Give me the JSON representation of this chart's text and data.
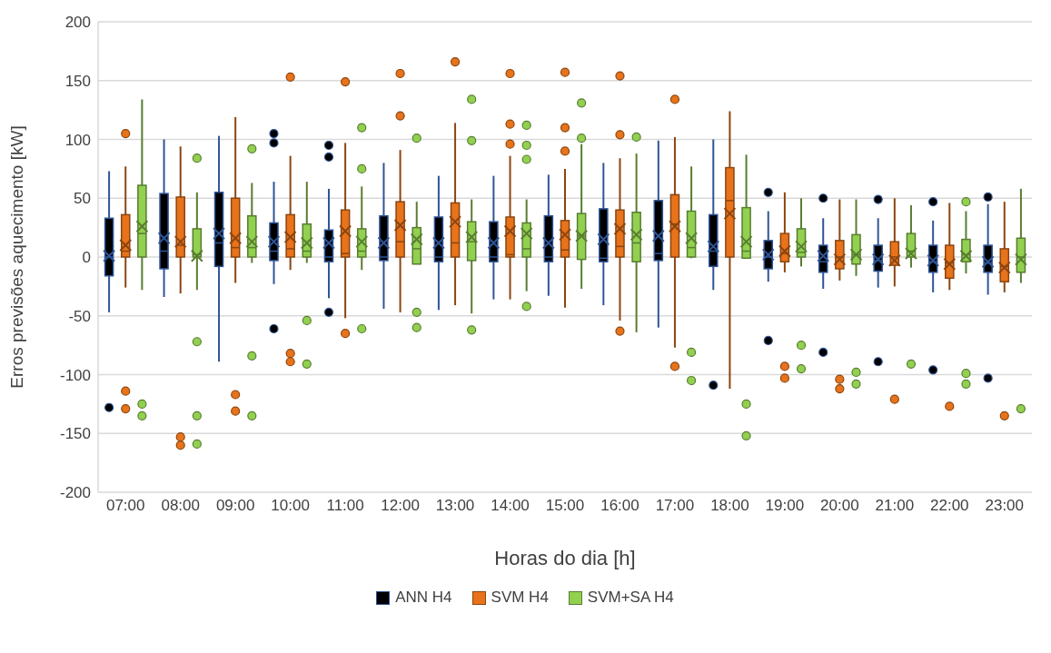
{
  "chart_data": {
    "type": "box",
    "xlabel": "Horas do dia [h]",
    "ylabel": "Erros previsões aquecimento [kW]",
    "categories": [
      "07:00",
      "08:00",
      "09:00",
      "10:00",
      "11:00",
      "12:00",
      "13:00",
      "14:00",
      "15:00",
      "16:00",
      "17:00",
      "18:00",
      "19:00",
      "20:00",
      "21:00",
      "22:00",
      "23:00"
    ],
    "ylim": [
      -200,
      200
    ],
    "yticks": [
      -200,
      -150,
      -100,
      -50,
      0,
      50,
      100,
      150,
      200
    ],
    "grid": "y",
    "legend": "bottom",
    "marker": "circle",
    "series": [
      {
        "name": "ANN H4",
        "color": "#000000",
        "boxes": [
          {
            "low": -47,
            "q1": -16,
            "median": 0,
            "q3": 33,
            "high": 73,
            "mean": 1,
            "outliers": [
              -128
            ]
          },
          {
            "low": -34,
            "q1": -10,
            "median": 5,
            "q3": 54,
            "high": 100,
            "mean": 16
          },
          {
            "low": -89,
            "q1": -8,
            "median": 12,
            "q3": 55,
            "high": 103,
            "mean": 20
          },
          {
            "low": -23,
            "q1": -3,
            "median": 5,
            "q3": 29,
            "high": 64,
            "mean": 13,
            "outliers": [
              105,
              97,
              -61
            ]
          },
          {
            "low": -35,
            "q1": -4,
            "median": 0,
            "q3": 23,
            "high": 58,
            "mean": 12,
            "outliers": [
              95,
              85,
              -47
            ]
          },
          {
            "low": -44,
            "q1": -3,
            "median": 0,
            "q3": 35,
            "high": 80,
            "mean": 12
          },
          {
            "low": -45,
            "q1": -4,
            "median": 0,
            "q3": 34,
            "high": 69,
            "mean": 12
          },
          {
            "low": -36,
            "q1": -4,
            "median": 0,
            "q3": 30,
            "high": 69,
            "mean": 12
          },
          {
            "low": -33,
            "q1": -4,
            "median": 0,
            "q3": 35,
            "high": 70,
            "mean": 12
          },
          {
            "low": -41,
            "q1": -4,
            "median": -1,
            "q3": 41,
            "high": 80,
            "mean": 15
          },
          {
            "low": -60,
            "q1": -3,
            "median": 3,
            "q3": 48,
            "high": 99,
            "mean": 18
          },
          {
            "low": -28,
            "q1": -8,
            "median": 5,
            "q3": 36,
            "high": 100,
            "mean": 9,
            "outliers": [
              -109
            ]
          },
          {
            "low": -21,
            "q1": -10,
            "median": 0,
            "q3": 14,
            "high": 39,
            "mean": 2,
            "outliers": [
              55,
              -71
            ]
          },
          {
            "low": -27,
            "q1": -13,
            "median": -4,
            "q3": 10,
            "high": 33,
            "mean": 1,
            "outliers": [
              50,
              -81
            ]
          },
          {
            "low": -26,
            "q1": -12,
            "median": -3,
            "q3": 10,
            "high": 33,
            "mean": -2,
            "outliers": [
              49,
              -89
            ]
          },
          {
            "low": -30,
            "q1": -13,
            "median": -4,
            "q3": 10,
            "high": 31,
            "mean": -3,
            "outliers": [
              47,
              -96
            ]
          },
          {
            "low": -32,
            "q1": -13,
            "median": -5,
            "q3": 10,
            "high": 45,
            "mean": -4,
            "outliers": [
              51,
              -103
            ]
          }
        ]
      },
      {
        "name": "SVM H4",
        "color": "#e8731a",
        "boxes": [
          {
            "low": -26,
            "q1": 0,
            "median": 5,
            "q3": 36,
            "high": 77,
            "mean": 10,
            "outliers": [
              105,
              -114,
              -129
            ]
          },
          {
            "low": -31,
            "q1": 0,
            "median": 10,
            "q3": 51,
            "high": 94,
            "mean": 13,
            "outliers": [
              -153,
              -160
            ]
          },
          {
            "low": -22,
            "q1": 0,
            "median": 8,
            "q3": 50,
            "high": 119,
            "mean": 16,
            "outliers": [
              -117,
              -131
            ]
          },
          {
            "low": -11,
            "q1": 0,
            "median": 7,
            "q3": 36,
            "high": 86,
            "mean": 17,
            "outliers": [
              153,
              -82,
              -89
            ]
          },
          {
            "low": -52,
            "q1": 0,
            "median": 3,
            "q3": 40,
            "high": 97,
            "mean": 22,
            "outliers": [
              149,
              -65
            ]
          },
          {
            "low": -47,
            "q1": 0,
            "median": 13,
            "q3": 47,
            "high": 91,
            "mean": 27,
            "outliers": [
              156,
              120
            ]
          },
          {
            "low": -41,
            "q1": 0,
            "median": 12,
            "q3": 46,
            "high": 114,
            "mean": 30,
            "outliers": [
              166
            ]
          },
          {
            "low": -36,
            "q1": 0,
            "median": 2,
            "q3": 34,
            "high": 86,
            "mean": 22,
            "outliers": [
              156,
              113,
              96
            ]
          },
          {
            "low": -43,
            "q1": 0,
            "median": 6,
            "q3": 31,
            "high": 75,
            "mean": 19,
            "outliers": [
              157,
              110,
              90
            ]
          },
          {
            "low": -54,
            "q1": 0,
            "median": 9,
            "q3": 40,
            "high": 84,
            "mean": 24,
            "outliers": [
              154,
              104,
              -63
            ]
          },
          {
            "low": -77,
            "q1": 0,
            "median": 28,
            "q3": 53,
            "high": 102,
            "mean": 26,
            "outliers": [
              134,
              -93
            ]
          },
          {
            "low": -112,
            "q1": 0,
            "median": 48,
            "q3": 76,
            "high": 124,
            "mean": 37
          },
          {
            "low": -13,
            "q1": -4,
            "median": 3,
            "q3": 20,
            "high": 55,
            "mean": 5,
            "outliers": [
              -93,
              -103
            ]
          },
          {
            "low": -20,
            "q1": -10,
            "median": 0,
            "q3": 14,
            "high": 49,
            "mean": -2,
            "outliers": [
              -104,
              -112
            ]
          },
          {
            "low": -25,
            "q1": -7,
            "median": 0,
            "q3": 13,
            "high": 50,
            "mean": -3,
            "outliers": [
              -121
            ]
          },
          {
            "low": -28,
            "q1": -18,
            "median": -5,
            "q3": 10,
            "high": 46,
            "mean": -6,
            "outliers": [
              -127
            ]
          },
          {
            "low": -30,
            "q1": -21,
            "median": -8,
            "q3": 7,
            "high": 47,
            "mean": -9,
            "outliers": [
              -135
            ]
          }
        ]
      },
      {
        "name": "SVM+SA H4",
        "color": "#92d050",
        "boxes": [
          {
            "low": -28,
            "q1": 0,
            "median": 20,
            "q3": 61,
            "high": 134,
            "mean": 26,
            "outliers": [
              -125,
              -135
            ]
          },
          {
            "low": -28,
            "q1": 0,
            "median": 2,
            "q3": 24,
            "high": 55,
            "mean": 1,
            "outliers": [
              84,
              -72,
              -135,
              -159
            ]
          },
          {
            "low": -5,
            "q1": 0,
            "median": 8,
            "q3": 35,
            "high": 63,
            "mean": 13,
            "outliers": [
              92,
              -84,
              -135
            ]
          },
          {
            "low": -5,
            "q1": 0,
            "median": 5,
            "q3": 28,
            "high": 64,
            "mean": 12,
            "outliers": [
              -54,
              -91
            ]
          },
          {
            "low": -11,
            "q1": 0,
            "median": 5,
            "q3": 24,
            "high": 60,
            "mean": 13,
            "outliers": [
              110,
              75,
              -61
            ]
          },
          {
            "low": -6,
            "q1": -6,
            "median": 7,
            "q3": 25,
            "high": 47,
            "mean": 15,
            "outliers": [
              101,
              -47,
              -60
            ]
          },
          {
            "low": -48,
            "q1": -3,
            "median": 13,
            "q3": 30,
            "high": 49,
            "mean": 17,
            "outliers": [
              134,
              99,
              -62
            ]
          },
          {
            "low": -29,
            "q1": 0,
            "median": 7,
            "q3": 29,
            "high": 49,
            "mean": 20,
            "outliers": [
              112,
              95,
              83,
              -42
            ]
          },
          {
            "low": -27,
            "q1": -2,
            "median": 18,
            "q3": 37,
            "high": 96,
            "mean": 18,
            "outliers": [
              131,
              101
            ]
          },
          {
            "low": -64,
            "q1": -4,
            "median": 12,
            "q3": 38,
            "high": 88,
            "mean": 19,
            "outliers": [
              102
            ]
          },
          {
            "low": -1,
            "q1": 0,
            "median": 8,
            "q3": 39,
            "high": 77,
            "mean": 16,
            "outliers": [
              -81,
              -105
            ]
          },
          {
            "low": -1,
            "q1": -1,
            "median": 5,
            "q3": 42,
            "high": 87,
            "mean": 13,
            "outliers": [
              -125,
              -152
            ]
          },
          {
            "low": -8,
            "q1": 0,
            "median": 4,
            "q3": 24,
            "high": 50,
            "mean": 9,
            "outliers": [
              -75,
              -95
            ]
          },
          {
            "low": -16,
            "q1": -6,
            "median": 2,
            "q3": 19,
            "high": 49,
            "mean": 2,
            "outliers": [
              -98,
              -108
            ]
          },
          {
            "low": -9,
            "q1": 0,
            "median": 5,
            "q3": 20,
            "high": 44,
            "mean": 3,
            "outliers": [
              -91
            ]
          },
          {
            "low": -14,
            "q1": -4,
            "median": 2,
            "q3": 15,
            "high": 39,
            "mean": 1,
            "outliers": [
              47,
              -99,
              -108
            ]
          },
          {
            "low": -22,
            "q1": -13,
            "median": 0,
            "q3": 16,
            "high": 58,
            "mean": -2,
            "outliers": [
              -129
            ]
          }
        ]
      }
    ]
  }
}
